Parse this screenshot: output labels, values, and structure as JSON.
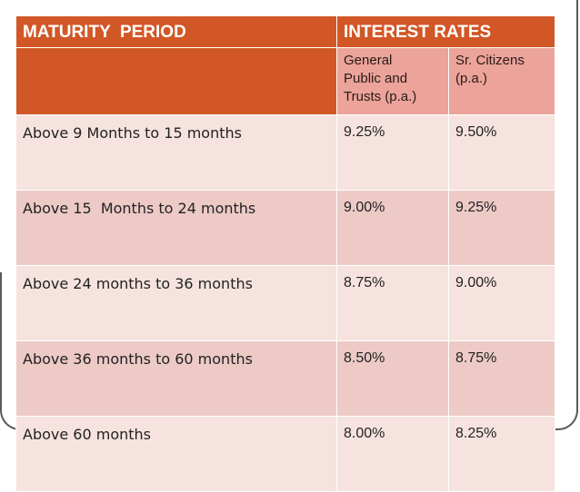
{
  "table": {
    "header": {
      "maturity_period": "MATURITY  PERIOD",
      "interest_rates": "INTEREST RATES",
      "general_public": "General\nPublic and\nTrusts (p.a.)",
      "senior_citizens": "Sr. Citizens\n(p.a.)"
    },
    "rows": [
      {
        "period": "Above 9 Months to 15 months",
        "general": "9.25%",
        "senior": "9.50%"
      },
      {
        "period": "Above 15  Months to 24 months",
        "general": "9.00%",
        "senior": "9.25%"
      },
      {
        "period": "Above 24 months to 36 months",
        "general": "8.75%",
        "senior": "9.00%"
      },
      {
        "period": "Above 36 months to 60 months",
        "general": "8.50%",
        "senior": "8.75%"
      },
      {
        "period": "Above 60 months",
        "general": "8.00%",
        "senior": "8.25%"
      }
    ]
  },
  "colors": {
    "header": "#d25726",
    "subheader": "#eba39a",
    "row_light": "#f6e3e0",
    "row_dark": "#edcac6"
  }
}
